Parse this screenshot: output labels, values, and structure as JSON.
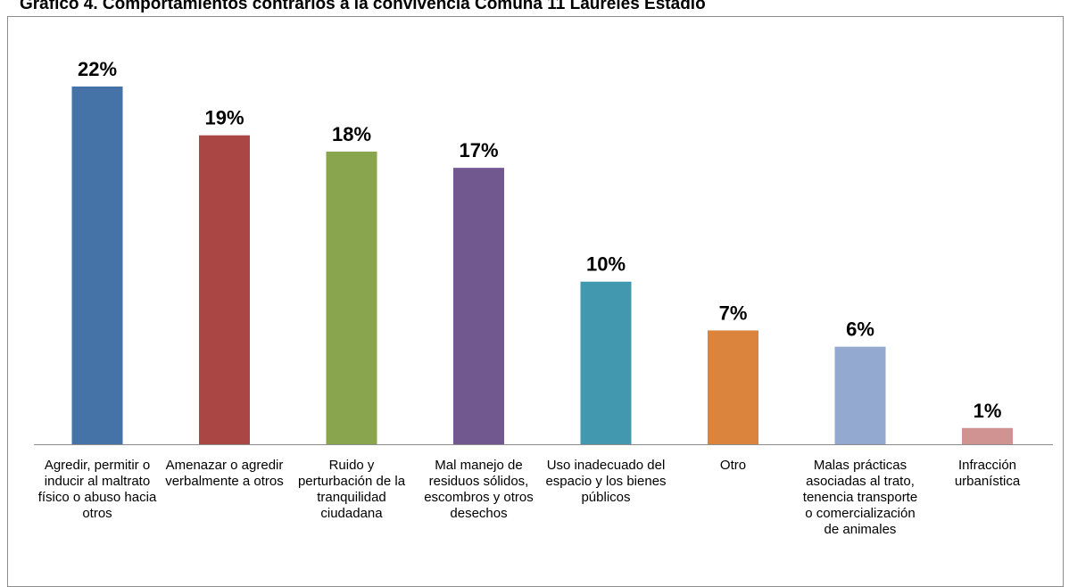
{
  "chart_data": {
    "type": "bar",
    "title": "Gráfico 4. Comportamientos contrarios a la convivencia Comuna 11 Laureles Estadio",
    "categories": [
      "Agredir, permitir o inducir al maltrato físico o abuso hacia otros",
      "Amenazar o agredir verbalmente a otros",
      "Ruido y perturbación de la tranquilidad ciudadana",
      "Mal manejo de residuos sólidos, escombros y otros desechos",
      "Uso inadecuado del espacio y los bienes públicos",
      "Otro",
      "Malas prácticas asociadas al trato, tenencia transporte o comercialización de animales",
      "Infracción urbanística"
    ],
    "values": [
      22,
      19,
      18,
      17,
      10,
      7,
      6,
      1
    ],
    "data_labels": [
      "22%",
      "19%",
      "18%",
      "17%",
      "10%",
      "7%",
      "6%",
      "1%"
    ],
    "colors": [
      "#4573a7",
      "#aa4643",
      "#89a54e",
      "#71588f",
      "#4198af",
      "#db843d",
      "#93a9cf",
      "#d19392"
    ],
    "ylim": [
      0,
      22
    ],
    "grid": false,
    "legend": "none"
  }
}
